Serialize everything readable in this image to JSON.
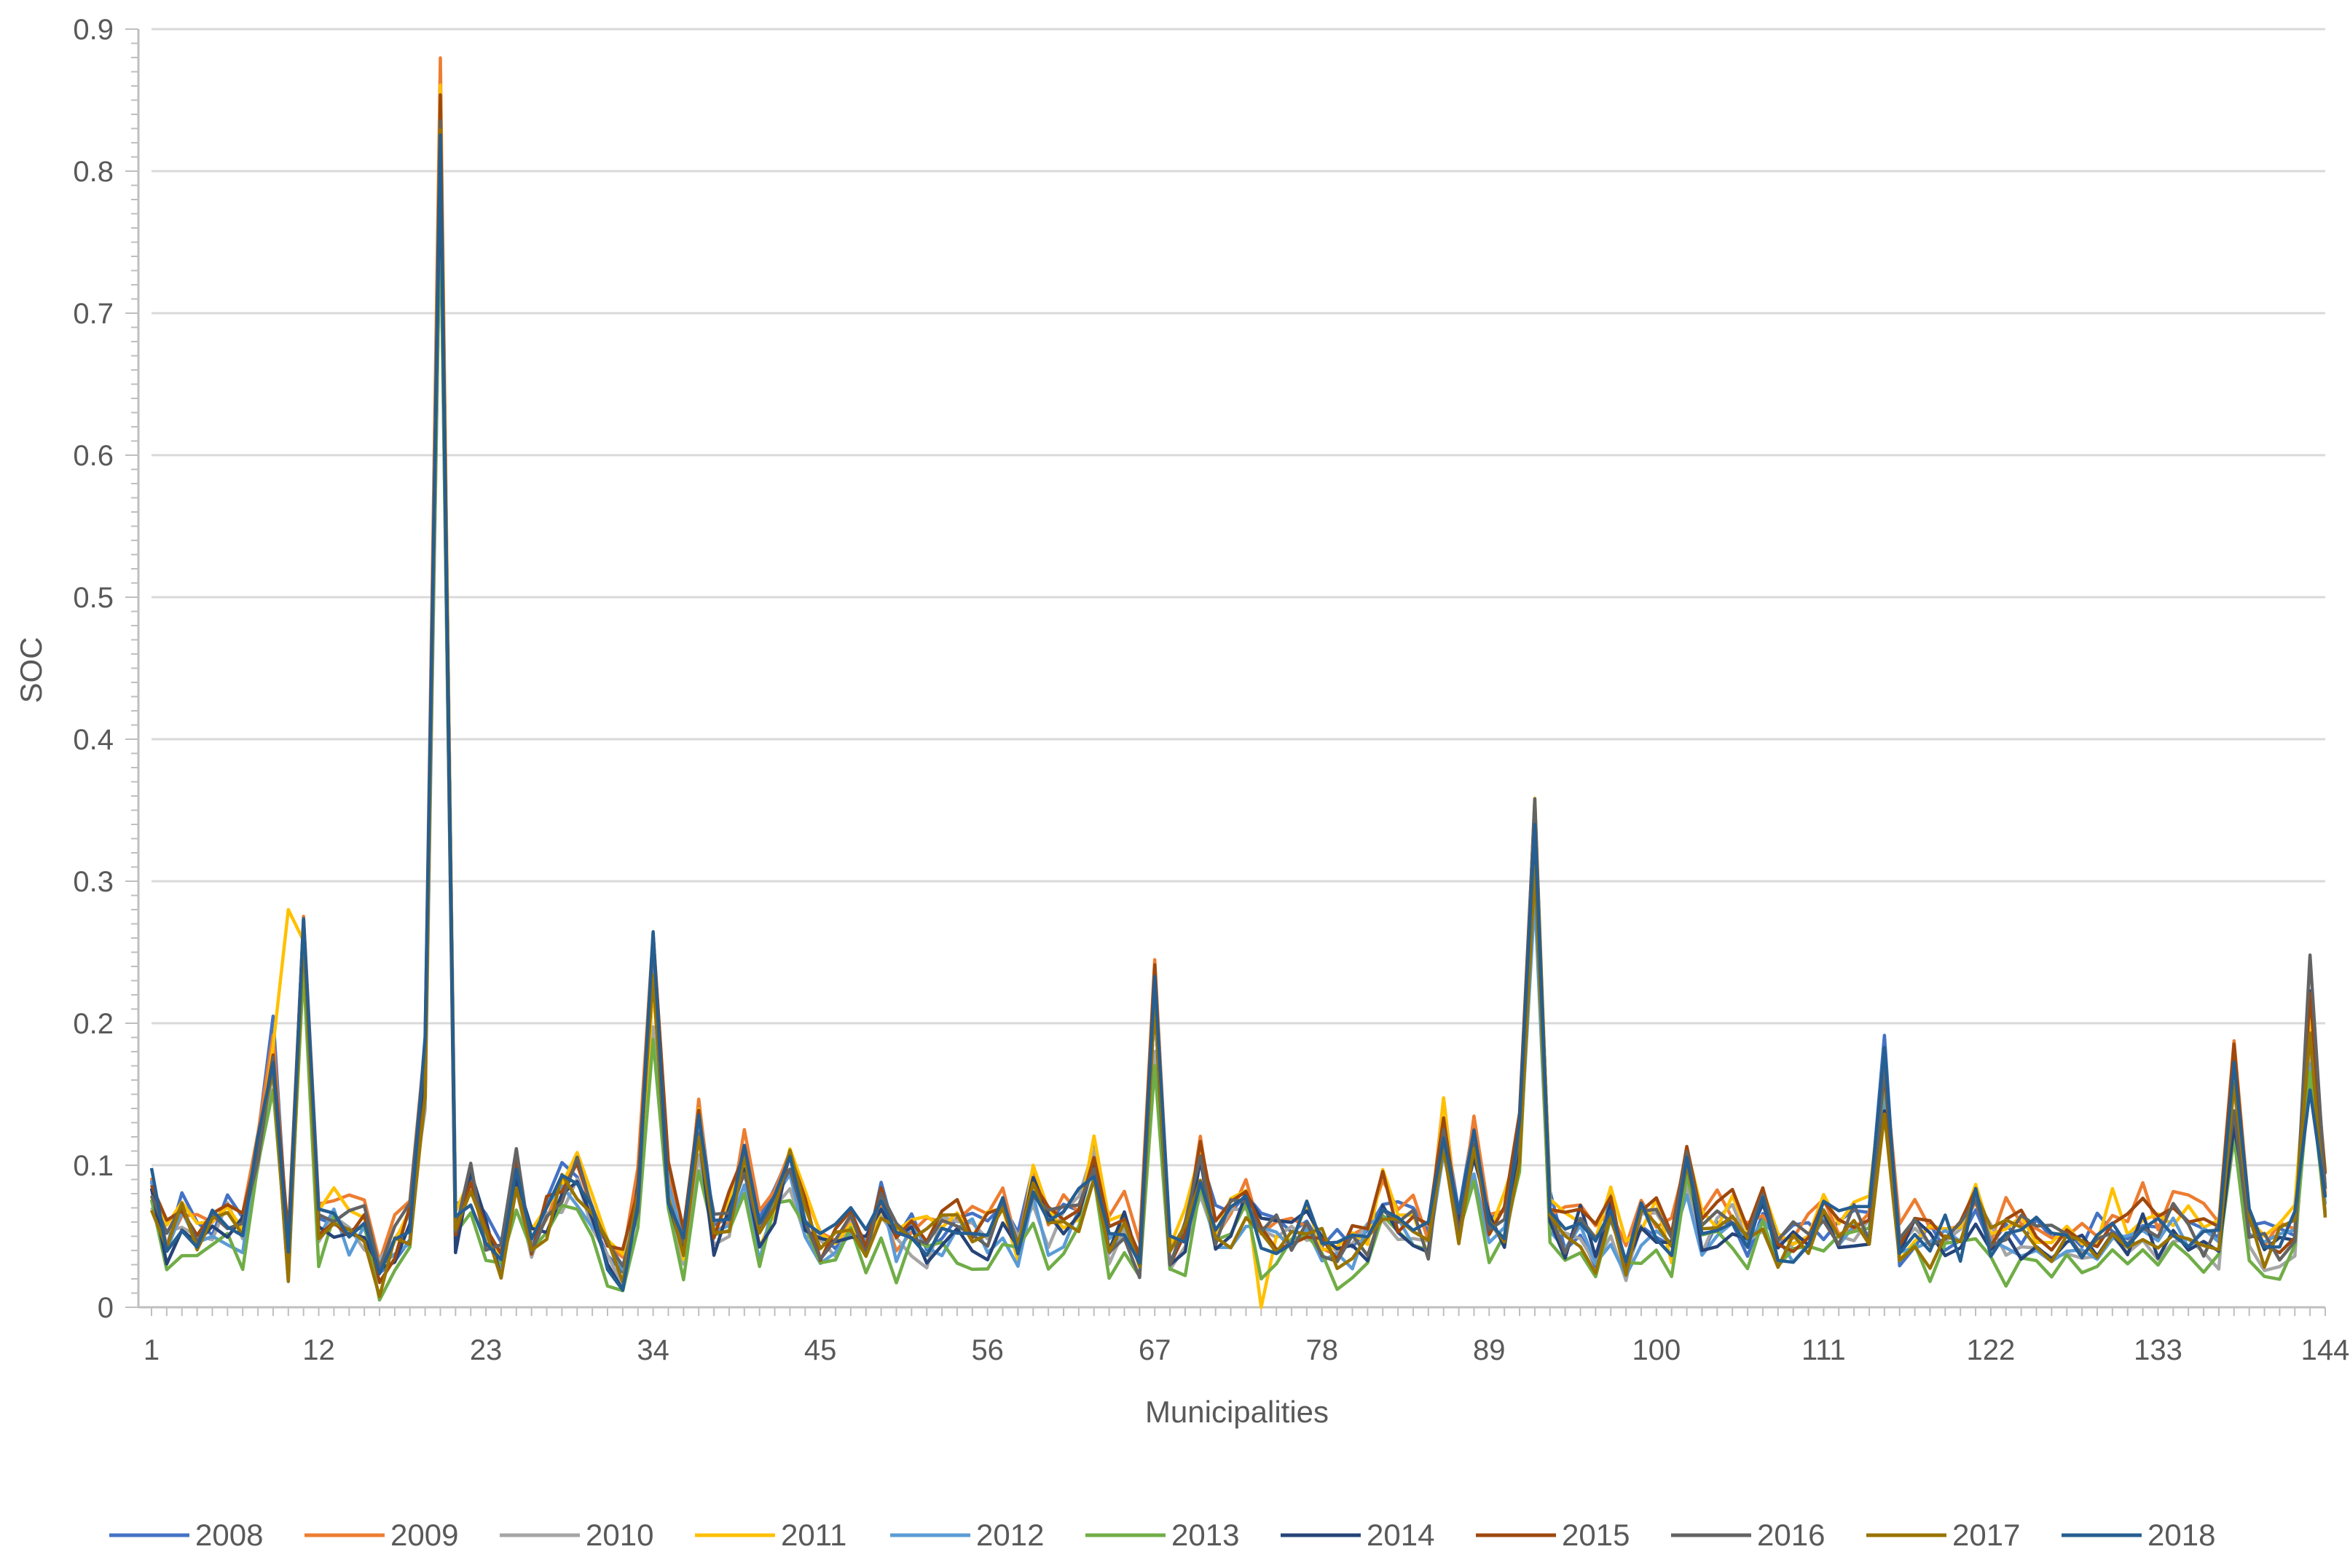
{
  "chart_data": {
    "type": "line",
    "title": "",
    "xlabel": "Municipalities",
    "ylabel": "SOC",
    "ylim": [
      0,
      0.9
    ],
    "xlim": [
      1,
      144
    ],
    "y_ticks": [
      0,
      0.1,
      0.2,
      0.3,
      0.4,
      0.5,
      0.6,
      0.7,
      0.8,
      0.9
    ],
    "y_tick_labels": [
      "0",
      "0.1",
      "0.2",
      "0.3",
      "0.4",
      "0.5",
      "0.6",
      "0.7",
      "0.8",
      "0.9"
    ],
    "x_ticks": [
      1,
      12,
      23,
      34,
      45,
      56,
      67,
      78,
      89,
      100,
      111,
      122,
      133,
      144
    ],
    "x_tick_labels": [
      "1",
      "12",
      "23",
      "34",
      "45",
      "56",
      "67",
      "78",
      "89",
      "100",
      "111",
      "122",
      "133",
      "144"
    ],
    "grid": "horizontal",
    "legend_position": "bottom",
    "base_profile": [
      0.085,
      0.045,
      0.065,
      0.05,
      0.06,
      0.065,
      0.055,
      0.11,
      0.18,
      0.035,
      0.25,
      0.055,
      0.065,
      0.055,
      0.06,
      0.025,
      0.045,
      0.06,
      0.17,
      0.84,
      0.055,
      0.085,
      0.05,
      0.035,
      0.095,
      0.045,
      0.065,
      0.085,
      0.09,
      0.06,
      0.04,
      0.025,
      0.075,
      0.24,
      0.085,
      0.04,
      0.13,
      0.05,
      0.065,
      0.105,
      0.05,
      0.075,
      0.1,
      0.065,
      0.04,
      0.05,
      0.06,
      0.05,
      0.075,
      0.045,
      0.055,
      0.045,
      0.055,
      0.06,
      0.055,
      0.05,
      0.065,
      0.04,
      0.09,
      0.055,
      0.06,
      0.07,
      0.105,
      0.045,
      0.06,
      0.035,
      0.22,
      0.04,
      0.05,
      0.1,
      0.055,
      0.06,
      0.075,
      0.055,
      0.05,
      0.05,
      0.06,
      0.045,
      0.04,
      0.045,
      0.05,
      0.08,
      0.06,
      0.055,
      0.045,
      0.13,
      0.055,
      0.115,
      0.055,
      0.06,
      0.12,
      0.33,
      0.065,
      0.05,
      0.06,
      0.04,
      0.065,
      0.03,
      0.06,
      0.06,
      0.04,
      0.1,
      0.05,
      0.06,
      0.065,
      0.045,
      0.07,
      0.04,
      0.045,
      0.055,
      0.06,
      0.055,
      0.06,
      0.06,
      0.17,
      0.04,
      0.055,
      0.045,
      0.05,
      0.045,
      0.075,
      0.05,
      0.055,
      0.05,
      0.05,
      0.045,
      0.055,
      0.045,
      0.05,
      0.065,
      0.055,
      0.065,
      0.05,
      0.06,
      0.055,
      0.05,
      0.045,
      0.16,
      0.06,
      0.045,
      0.045,
      0.055,
      0.2,
      0.08
    ],
    "series": [
      {
        "name": "2008",
        "color": "#4472C4",
        "scale": 1.0,
        "offset": 0.002,
        "seed": 1
      },
      {
        "name": "2009",
        "color": "#ED7D31",
        "scale": 1.02,
        "offset": 0.008,
        "seed": 2
      },
      {
        "name": "2010",
        "color": "#A5A5A5",
        "scale": 0.95,
        "offset": -0.002,
        "seed": 3
      },
      {
        "name": "2011",
        "color": "#FFC000",
        "scale": 1.0,
        "offset": 0.006,
        "seed": 4
      },
      {
        "name": "2012",
        "color": "#5B9BD5",
        "scale": 0.96,
        "offset": -0.004,
        "seed": 5
      },
      {
        "name": "2013",
        "color": "#70AD47",
        "scale": 0.93,
        "offset": -0.01,
        "seed": 6
      },
      {
        "name": "2014",
        "color": "#264478",
        "scale": 1.0,
        "offset": -0.003,
        "seed": 7
      },
      {
        "name": "2015",
        "color": "#9E480E",
        "scale": 1.0,
        "offset": 0.004,
        "seed": 8
      },
      {
        "name": "2016",
        "color": "#636363",
        "scale": 1.02,
        "offset": 0.0,
        "seed": 9
      },
      {
        "name": "2017",
        "color": "#997300",
        "scale": 0.98,
        "offset": -0.002,
        "seed": 10
      },
      {
        "name": "2018",
        "color": "#255E91",
        "scale": 1.01,
        "offset": 0.0,
        "seed": 11
      }
    ],
    "overrides": {
      "2011": {
        "10": 0.28,
        "74": 0.0
      },
      "2008": {
        "9": 0.205,
        "20": 0.85
      },
      "2016": {
        "143": 0.248,
        "34": 0.26,
        "92": 0.358
      },
      "2018": {
        "143": 0.153,
        "67": 0.233,
        "115": 0.183
      },
      "2013": {
        "123": 0.015,
        "74": 0.02
      }
    },
    "colors": {
      "grid": "#D9D9D9",
      "axis": "#BFBFBF",
      "text": "#595959",
      "background": "#FFFFFF"
    }
  }
}
